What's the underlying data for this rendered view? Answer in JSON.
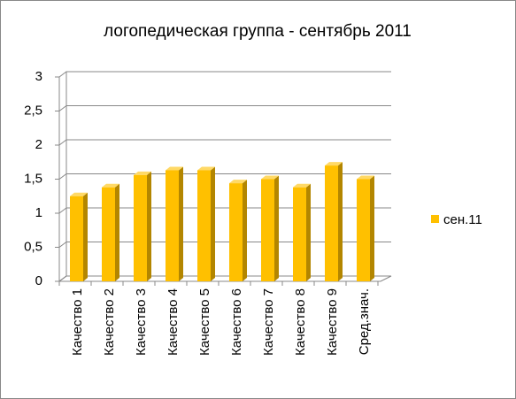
{
  "chart_data": {
    "type": "bar",
    "title": "логопедическая группа - сентябрь 2011",
    "categories": [
      "Качество 1",
      "Качество 2",
      "Качество 3",
      "Качество 4",
      "Качество 5",
      "Качество 6",
      "Качество 7",
      "Качество 8",
      "Качество 9",
      "Сред.знач."
    ],
    "series": [
      {
        "name": "сен.11",
        "color": "#ffc000",
        "values": [
          1.25,
          1.38,
          1.56,
          1.63,
          1.63,
          1.44,
          1.5,
          1.38,
          1.7,
          1.5
        ]
      }
    ],
    "ylim": [
      0,
      3
    ],
    "yticks": [
      0,
      {
        "value": 0.5,
        "label": "0,5"
      },
      1,
      {
        "value": 1.5,
        "label": "1,5"
      },
      2,
      {
        "value": 2.5,
        "label": "2,5"
      },
      3
    ],
    "grid": true,
    "legend": "right"
  }
}
